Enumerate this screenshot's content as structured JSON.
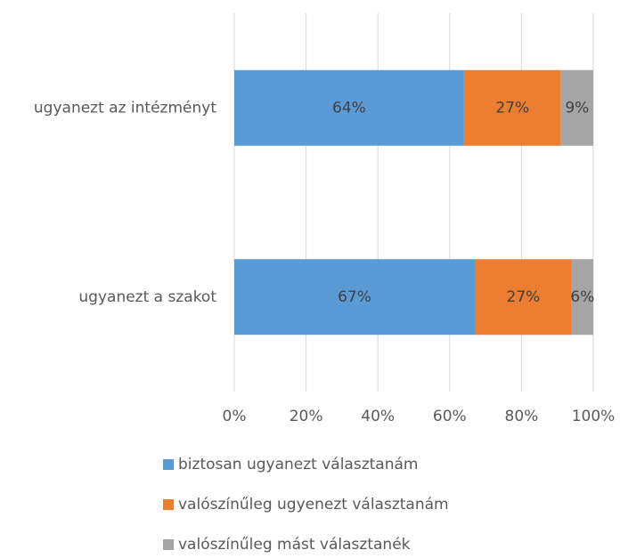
{
  "chart_data": {
    "type": "bar",
    "orientation": "horizontal",
    "stacked": true,
    "categories": [
      "ugyanezt az intézményt",
      "ugyanezt a szakot"
    ],
    "series": [
      {
        "name": "biztosan ugyanezt választanám",
        "color": "#5b9bd5",
        "values": [
          64,
          67
        ],
        "value_labels": [
          "64%",
          "67%"
        ]
      },
      {
        "name": "valószínűleg ugyenezt választanám",
        "color": "#ed7d31",
        "values": [
          27,
          27
        ],
        "value_labels": [
          "27%",
          "27%"
        ]
      },
      {
        "name": "valószínűleg mást választanék",
        "color": "#a5a5a5",
        "values": [
          9,
          6
        ],
        "value_labels": [
          "9%",
          "6%"
        ]
      }
    ],
    "xlim": [
      0,
      100
    ],
    "xticks": [
      {
        "value": 0,
        "label": "0%"
      },
      {
        "value": 20,
        "label": "20%"
      },
      {
        "value": 40,
        "label": "40%"
      },
      {
        "value": 60,
        "label": "60%"
      },
      {
        "value": 80,
        "label": "80%"
      },
      {
        "value": 100,
        "label": "100%"
      }
    ],
    "grid": true,
    "legend": "bottom"
  }
}
